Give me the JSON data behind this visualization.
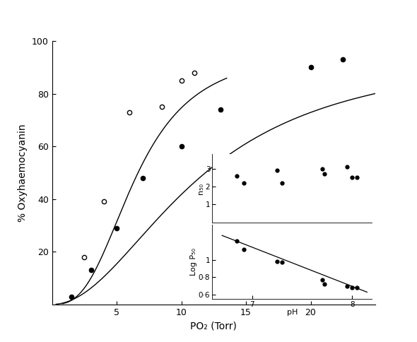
{
  "main_closed_x": [
    1.5,
    3.0,
    5.0,
    7.0,
    10.0,
    13.0,
    20.0,
    22.5
  ],
  "main_closed_y": [
    3,
    13,
    29,
    48,
    60,
    74,
    90,
    93
  ],
  "main_open_x": [
    2.5,
    4.0,
    6.0,
    8.5,
    10.0,
    11.0
  ],
  "main_open_y": [
    18,
    39,
    73,
    75,
    85,
    88
  ],
  "p50_closed": 11.5,
  "n_closed": 2.0,
  "ymax_closed": 97,
  "p50_open": 6.5,
  "n_open": 2.8,
  "ymax_open": 97,
  "inset_n50_ph": [
    6.85,
    6.92,
    7.25,
    7.3,
    7.7,
    7.72,
    7.95,
    8.0,
    8.05
  ],
  "inset_n50_val": [
    2.6,
    2.2,
    2.9,
    2.2,
    3.0,
    2.7,
    3.1,
    2.5,
    2.5
  ],
  "inset_logp50_ph": [
    6.85,
    6.92,
    7.25,
    7.3,
    7.7,
    7.72,
    7.95,
    8.0,
    8.05
  ],
  "inset_logp50_val": [
    1.22,
    1.12,
    0.98,
    0.97,
    0.77,
    0.72,
    0.7,
    0.68,
    0.68
  ],
  "logp50_line_x": [
    6.7,
    8.15
  ],
  "logp50_line_y": [
    1.28,
    0.63
  ],
  "ylabel": "% Oxyhaemocyanin",
  "xlabel": "PO₂ (Torr)",
  "inset_xlabel": "pH",
  "inset_ylabel_top": "n₅₀",
  "inset_ylabel_bot": "Log P₅₀",
  "xlim": [
    0,
    25
  ],
  "ylim": [
    0,
    100
  ],
  "xticks": [
    5,
    10,
    15,
    20
  ],
  "yticks": [
    20,
    40,
    60,
    80,
    100
  ],
  "background_color": "#ffffff"
}
